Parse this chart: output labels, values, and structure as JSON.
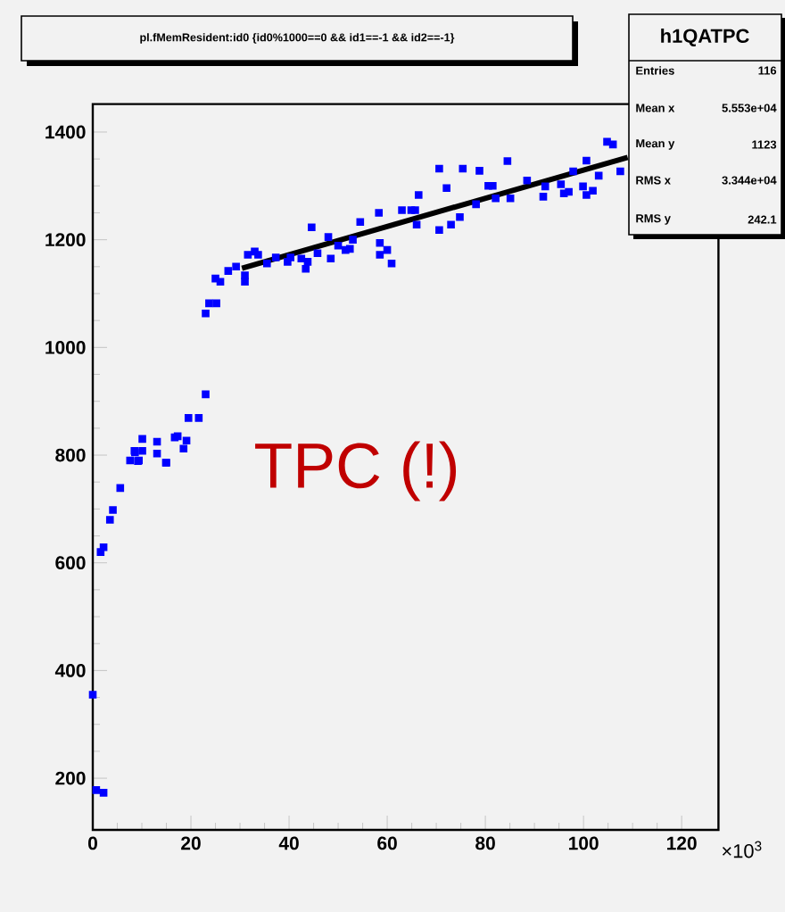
{
  "chart_data": {
    "type": "scatter",
    "title": "pl.fMemResident:id0 {id0%1000==0 && id1==-1 && id2==-1}",
    "annotations": [
      "h1QATPC",
      "Entries",
      "116",
      "Mean x",
      "5.553e+04",
      "Mean y",
      "1123",
      "RMS x",
      "3.344e+04",
      "RMS y",
      "242.1",
      "TPC (!)",
      "×10$^{3}$"
    ],
    "xlim": [
      0,
      127.5
    ],
    "ylim": [
      104,
      1452
    ],
    "xticks": [
      0,
      20,
      40,
      60,
      80,
      100,
      120
    ],
    "yticks": [
      200,
      400,
      600,
      800,
      1000,
      1200,
      1400
    ],
    "series": [
      {
        "marker": "square",
        "color": "#0000ff",
        "x": [
          0,
          0.7,
          2.2,
          1.6,
          2.2,
          3.5,
          4.1,
          5.6,
          7.6,
          8.6,
          9.4,
          10.1,
          13.1,
          15,
          18.5,
          8.5,
          9.2,
          10.1,
          13.1,
          14.9,
          16.7,
          17.3,
          19.1,
          19.5,
          21.6,
          23,
          23,
          23.7,
          25.2,
          25,
          26,
          27.6,
          29.2,
          31,
          31,
          31.6,
          33,
          33.7,
          35.5,
          37.3,
          39.7,
          40.3,
          42.5,
          43.4,
          43.8,
          44.6,
          45.8,
          48,
          48.5,
          50,
          51.5,
          52.4,
          53,
          54.5,
          58.3,
          58.5,
          58.5,
          60,
          60.9,
          63,
          64.9,
          65.7,
          66.4,
          66,
          70.6,
          70.6,
          72.1,
          73,
          74.8,
          75.4,
          78.1,
          78.8,
          80.6,
          81.5,
          82.1,
          84.5,
          85.1,
          88.5,
          91.8,
          92.2,
          95.4,
          96,
          97,
          97.9,
          99.9,
          100.6,
          100.6,
          101.9,
          103.1,
          104.8,
          106,
          107.5
        ],
        "values": [
          355,
          178,
          173,
          620,
          629,
          680,
          698,
          739,
          790,
          805,
          790,
          808,
          803,
          786,
          812,
          808,
          789,
          830,
          825,
          786,
          833,
          835,
          827,
          869,
          869,
          913,
          1063,
          1082,
          1082,
          1128,
          1122,
          1142,
          1150,
          1122,
          1134,
          1172,
          1178,
          1172,
          1156,
          1167,
          1159,
          1167,
          1165,
          1146,
          1159,
          1223,
          1175,
          1205,
          1165,
          1189,
          1181,
          1183,
          1200,
          1233,
          1250,
          1194,
          1172,
          1181,
          1156,
          1255,
          1255,
          1255,
          1283,
          1228,
          1332,
          1218,
          1296,
          1228,
          1242,
          1332,
          1266,
          1328,
          1300,
          1300,
          1277,
          1346,
          1277,
          1310,
          1280,
          1299,
          1303,
          1286,
          1289,
          1327,
          1299,
          1283,
          1347,
          1291,
          1319,
          1382,
          1377,
          1327
        ]
      },
      {
        "type": "line",
        "color": "#000000",
        "x": [
          30.4,
          109
        ],
        "values": [
          1147,
          1353
        ]
      }
    ]
  }
}
